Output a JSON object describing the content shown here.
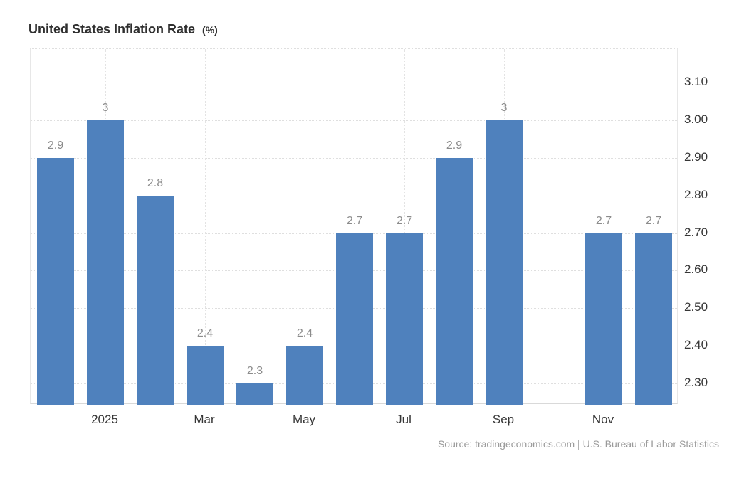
{
  "header": {
    "title": "United States Inflation Rate",
    "unit_suffix": "(%)"
  },
  "footer": {
    "source_text": "Source: tradingeconomics.com | U.S. Bureau of Labor Statistics"
  },
  "chart_data": {
    "type": "bar",
    "title": "United States Inflation Rate (%)",
    "categories": [
      "",
      "2025",
      "",
      "Mar",
      "",
      "May",
      "",
      "Jul",
      "",
      "Sep",
      "",
      "Nov",
      ""
    ],
    "values": [
      2.9,
      3,
      2.8,
      2.4,
      2.3,
      2.4,
      2.7,
      2.7,
      2.9,
      3,
      null,
      2.7,
      2.7
    ],
    "bar_value_labels": [
      "2.9",
      "3",
      "2.8",
      "2.4",
      "2.3",
      "2.4",
      "2.7",
      "2.7",
      "2.9",
      "3",
      "",
      "2.7",
      "2.7"
    ],
    "missing_slots": [
      10
    ],
    "y_ticks": [
      {
        "value": 3.1,
        "label": "3.10"
      },
      {
        "value": 3.0,
        "label": "3.00"
      },
      {
        "value": 2.9,
        "label": "2.90"
      },
      {
        "value": 2.8,
        "label": "2.80"
      },
      {
        "value": 2.7,
        "label": "2.70"
      },
      {
        "value": 2.6,
        "label": "2.60"
      },
      {
        "value": 2.5,
        "label": "2.50"
      },
      {
        "value": 2.4,
        "label": "2.40"
      },
      {
        "value": 2.3,
        "label": "2.30"
      }
    ],
    "ylim": [
      2.243,
      3.189
    ],
    "y_axis_position": "right",
    "grid_style": "dotted",
    "legend": "none",
    "colors": {
      "bar": "#4F81BD",
      "value_label": "#8c8c8c",
      "axis_label": "#363636",
      "title": "#2f2f2f",
      "source": "#9a9a9a",
      "background": "#ffffff"
    }
  }
}
